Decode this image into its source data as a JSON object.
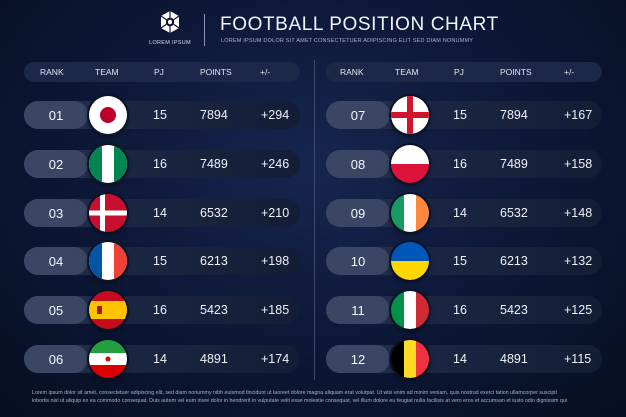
{
  "logo": {
    "text": "LOREM IPSUM",
    "icon": "football-logo-icon"
  },
  "title": "FOOTBALL POSITION CHART",
  "subtitle": "LOREM IPSUM DOLOR SIT AMET CONSECTETUER ADIPISCING ELIT SED DIAM NONUMMY",
  "columns": {
    "rank": "RANK",
    "team": "TEAM",
    "pj": "PJ",
    "points": "POINTS",
    "diff": "+/-"
  },
  "left_rows": [
    {
      "rank": "01",
      "flag": "japan-flag",
      "pj": "15",
      "points": "7894",
      "diff": "+294"
    },
    {
      "rank": "02",
      "flag": "nigeria-flag",
      "pj": "16",
      "points": "7489",
      "diff": "+246"
    },
    {
      "rank": "03",
      "flag": "denmark-flag",
      "pj": "14",
      "points": "6532",
      "diff": "+210"
    },
    {
      "rank": "04",
      "flag": "france-flag",
      "pj": "15",
      "points": "6213",
      "diff": "+198"
    },
    {
      "rank": "05",
      "flag": "spain-flag",
      "pj": "16",
      "points": "5423",
      "diff": "+185"
    },
    {
      "rank": "06",
      "flag": "iran-flag",
      "pj": "14",
      "points": "4891",
      "diff": "+174"
    }
  ],
  "right_rows": [
    {
      "rank": "07",
      "flag": "england-flag",
      "pj": "15",
      "points": "7894",
      "diff": "+167"
    },
    {
      "rank": "08",
      "flag": "poland-flag",
      "pj": "16",
      "points": "7489",
      "diff": "+158"
    },
    {
      "rank": "09",
      "flag": "ireland-flag",
      "pj": "14",
      "points": "6532",
      "diff": "+148"
    },
    {
      "rank": "10",
      "flag": "ukraine-flag",
      "pj": "15",
      "points": "6213",
      "diff": "+132"
    },
    {
      "rank": "11",
      "flag": "italy-flag",
      "pj": "16",
      "points": "5423",
      "diff": "+125"
    },
    {
      "rank": "12",
      "flag": "belgium-flag",
      "pj": "14",
      "points": "4891",
      "diff": "+115"
    }
  ],
  "footer_lines": [
    "Lorem ipsum dolor sit amet, consectetuer adipiscing elit, sed diam nonummy nibh euismod tincidunt ut laoreet dolore magna aliquam erat volutpat. Ut wisi enim ad minim veniam, quis nostrud exerci tation ullamcorper suscipit",
    "lobortis nisl ut aliquip ex ea commodo consequat. Duis autem vel eum iriure dolor in hendrerit in vulputate velit esse molestie consequat, vel illum dolore eu feugiat nulla facilisis at vero eros et accumsan et iusto odio dignissim qui"
  ]
}
